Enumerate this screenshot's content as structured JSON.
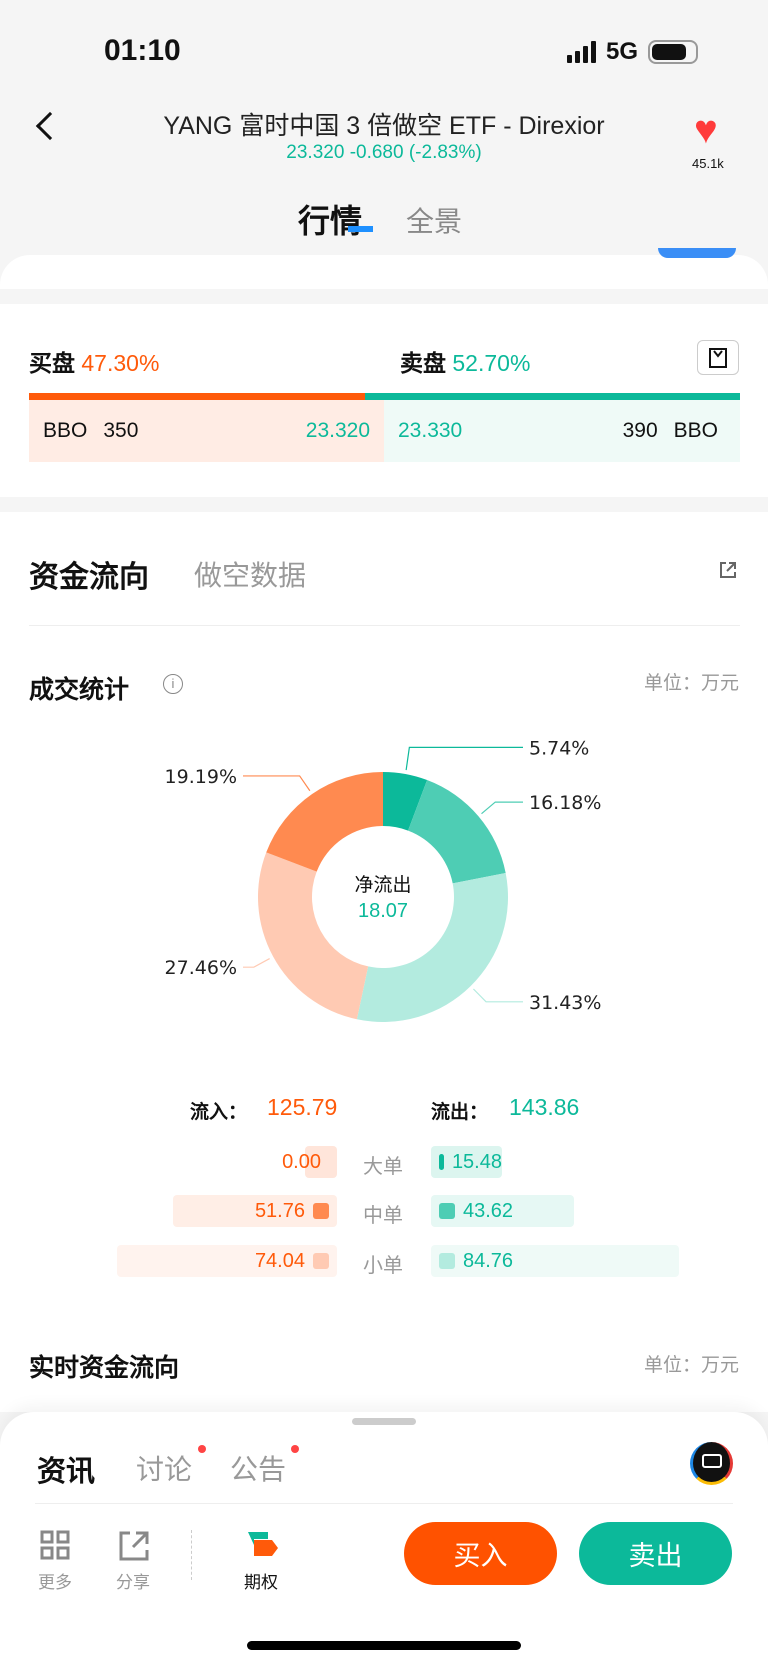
{
  "status": {
    "time": "01:10",
    "network": "5G"
  },
  "header": {
    "title": "YANG 富时中国 3 倍做空 ETF - Direxior",
    "quote": "23.320 -0.680 (-2.83%)",
    "favorites": "45.1k",
    "tabs": [
      "行情",
      "全景"
    ]
  },
  "colors": {
    "up": "#ff5a0a",
    "down": "#0cb99a"
  },
  "orderbook": {
    "bid_label": "买盘",
    "bid_pct": "47.30%",
    "ask_label": "卖盘",
    "ask_pct": "52.70%",
    "bid": {
      "source": "BBO",
      "size": "350",
      "price": "23.320"
    },
    "ask": {
      "price": "23.330",
      "size": "390",
      "source": "BBO"
    }
  },
  "capital": {
    "tabs": [
      "资金流向",
      "做空数据"
    ],
    "stats_title": "成交统计",
    "unit": "单位：万元",
    "center_label": "净流出",
    "center_value": "18.07",
    "inflow_label": "流入：",
    "inflow": "125.79",
    "outflow_label": "流出：",
    "outflow": "143.86",
    "rows": [
      {
        "label": "大单",
        "in": "0.00",
        "out": "15.48"
      },
      {
        "label": "中单",
        "in": "51.76",
        "out": "43.62"
      },
      {
        "label": "小单",
        "in": "74.04",
        "out": "84.76"
      }
    ],
    "realtime_title": "实时资金流向",
    "realtime_unit": "单位：万元"
  },
  "chart_data": {
    "type": "pie",
    "donut": true,
    "slices": [
      {
        "category": "大单流出",
        "value": 5.74,
        "label": "5.74%",
        "color": "#0cb99a"
      },
      {
        "category": "中单流出",
        "value": 16.18,
        "label": "16.18%",
        "color": "#4ecdb4"
      },
      {
        "category": "小单流出",
        "value": 31.43,
        "label": "31.43%",
        "color": "#b3ebdf"
      },
      {
        "category": "小单流入",
        "value": 27.46,
        "label": "27.46%",
        "color": "#ffcab3"
      },
      {
        "category": "中单流入",
        "value": 19.19,
        "label": "19.19%",
        "color": "#ff8a50"
      },
      {
        "category": "大单流入",
        "value": 0,
        "label": "",
        "color": "#ff5a0a"
      }
    ]
  },
  "bottom": {
    "tabs": [
      "资讯",
      "讨论",
      "公告"
    ],
    "more": "更多",
    "share": "分享",
    "options": "期权",
    "buy": "买入",
    "sell": "卖出"
  }
}
